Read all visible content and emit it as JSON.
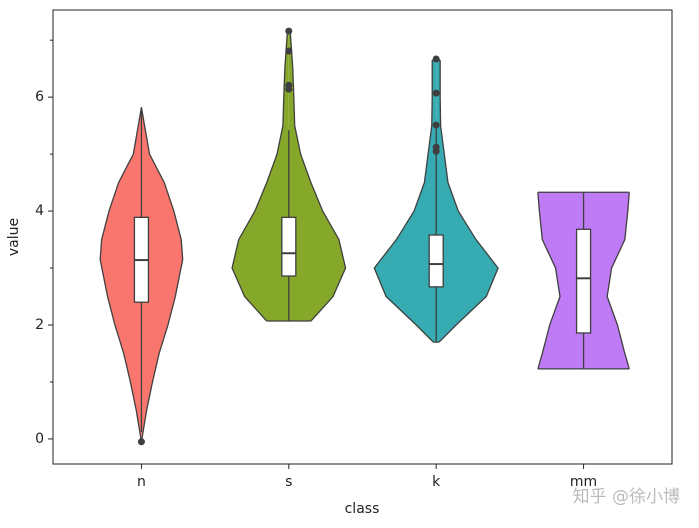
{
  "chart_data": {
    "type": "violin",
    "x_label": "class",
    "y_label": "value",
    "categories": [
      "n",
      "s",
      "k",
      "mm"
    ],
    "colors": [
      "#f8766d",
      "#85a82b",
      "#36acb2",
      "#bf7af5"
    ],
    "xlim": [
      -0.6,
      3.6
    ],
    "ylim": [
      -0.44,
      7.53
    ],
    "yticks": [
      0,
      2,
      4,
      6
    ],
    "yticks_minor": [
      1,
      3,
      5,
      7
    ],
    "violins": [
      {
        "kde_y": [
          5.82,
          5.0,
          4.5,
          4.0,
          3.5,
          3.15,
          2.5,
          2.0,
          1.5,
          1.0,
          0.5,
          -0.05
        ],
        "kde_width": [
          0,
          0.055,
          0.155,
          0.22,
          0.27,
          0.28,
          0.23,
          0.18,
          0.12,
          0.075,
          0.035,
          0
        ],
        "whisker_low": 0.12,
        "q1": 2.4,
        "median": 3.14,
        "q3": 3.89,
        "whisker_high": 5.82,
        "outliers": [
          -0.05
        ]
      },
      {
        "kde_y": [
          7.14,
          6.5,
          6.0,
          5.5,
          5.0,
          4.5,
          4.0,
          3.5,
          3.0,
          2.5,
          2.07
        ],
        "kde_width": [
          0.01,
          0.027,
          0.034,
          0.04,
          0.08,
          0.15,
          0.23,
          0.34,
          0.385,
          0.3,
          0.15
        ],
        "whisker_low": 2.07,
        "q1": 2.86,
        "median": 3.26,
        "q3": 3.89,
        "whisker_high": 5.42,
        "outliers": [
          6.14,
          6.21,
          6.81,
          7.16
        ]
      },
      {
        "kde_y": [
          6.65,
          6.0,
          5.5,
          5.1,
          4.5,
          4.0,
          3.5,
          3.0,
          2.5,
          2.0,
          1.7
        ],
        "kde_width": [
          0.027,
          0.027,
          0.03,
          0.05,
          0.08,
          0.15,
          0.27,
          0.42,
          0.34,
          0.135,
          0.02
        ],
        "whisker_low": 1.7,
        "q1": 2.67,
        "median": 3.07,
        "q3": 3.58,
        "whisker_high": 5.47,
        "outliers": [
          5.05,
          5.12,
          5.51,
          6.07,
          6.67
        ]
      },
      {
        "kde_y": [
          4.33,
          4.0,
          3.5,
          3.0,
          2.5,
          2.0,
          1.5,
          1.23
        ],
        "kde_width": [
          0.31,
          0.3,
          0.28,
          0.19,
          0.16,
          0.23,
          0.28,
          0.31
        ],
        "whisker_low": 1.23,
        "q1": 1.86,
        "median": 2.82,
        "q3": 3.68,
        "whisker_high": 4.33,
        "outliers": []
      }
    ],
    "watermark": "知乎 @徐小博"
  }
}
